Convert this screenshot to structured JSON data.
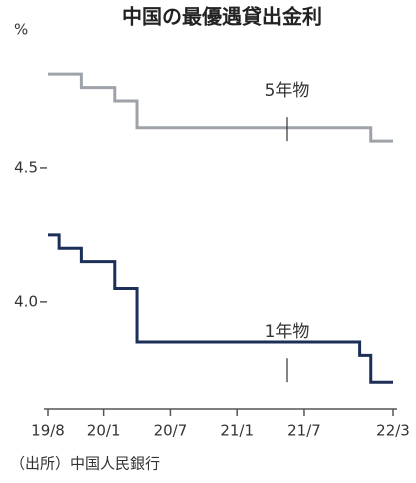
{
  "chart_data": {
    "type": "step",
    "title": "中国の最優遇貸出金利",
    "y_label": "%",
    "source": "（出所）中国人民銀行",
    "ylim": [
      3.6,
      5.0
    ],
    "yticks": [
      {
        "value": 4.0,
        "label": "4.0"
      },
      4.5
    ],
    "xlim": [
      0,
      31
    ],
    "xticks": [
      {
        "value": 0,
        "label": "19/8"
      },
      {
        "value": 5,
        "label": "20/1"
      },
      {
        "value": 11,
        "label": "20/7"
      },
      {
        "value": 17,
        "label": "21/1"
      },
      {
        "value": 23,
        "label": "21/7"
      },
      {
        "value": 31,
        "label": "22/3"
      }
    ],
    "series": [
      {
        "name": "5年物",
        "color": "#9ea3aa",
        "x": [
          0,
          3,
          6,
          8,
          29,
          31
        ],
        "values": [
          4.85,
          4.8,
          4.75,
          4.65,
          4.6,
          4.6
        ]
      },
      {
        "name": "1年物",
        "color": "#1b2f57",
        "x": [
          0,
          1,
          3,
          6,
          8,
          28,
          29,
          31
        ],
        "values": [
          4.25,
          4.2,
          4.15,
          4.05,
          3.85,
          3.8,
          3.7,
          3.7
        ]
      }
    ]
  }
}
